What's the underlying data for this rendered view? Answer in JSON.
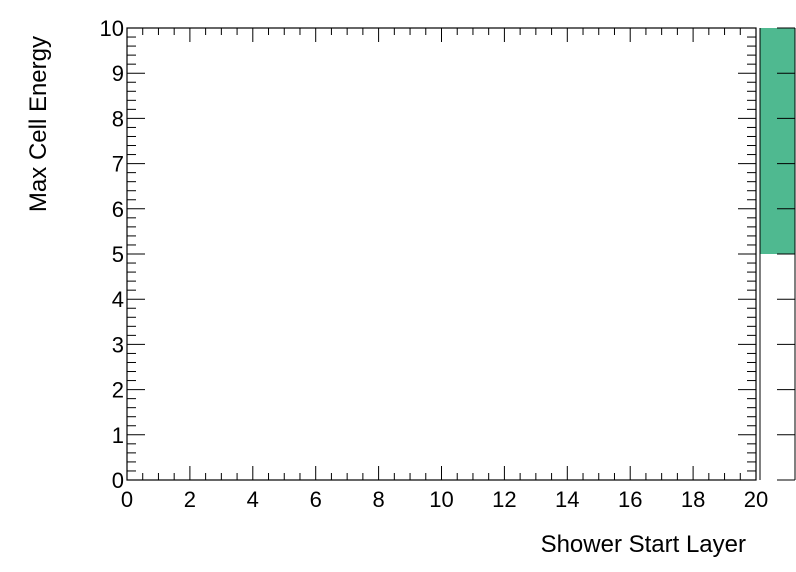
{
  "chart_data": {
    "type": "heatmap",
    "title": "",
    "xlabel": "Shower Start Layer",
    "ylabel": "Max Cell Energy",
    "xlim": [
      0,
      20
    ],
    "ylim": [
      0,
      10
    ],
    "x_ticks": [
      "0",
      "2",
      "4",
      "6",
      "8",
      "10",
      "12",
      "14",
      "16",
      "18",
      "20"
    ],
    "y_ticks": [
      "0",
      "1",
      "2",
      "3",
      "4",
      "5",
      "6",
      "7",
      "8",
      "9",
      "10"
    ],
    "x_minor_step": 0.5,
    "y_minor_step": 0.2,
    "cells": [],
    "grid": false,
    "colors": {
      "frame": "#000000",
      "palette_top": "#4fb990",
      "background": "#ffffff"
    },
    "palette": {
      "range": [
        5,
        10
      ],
      "colored_fraction_from_top": 0.5,
      "tick_count": 10
    }
  }
}
